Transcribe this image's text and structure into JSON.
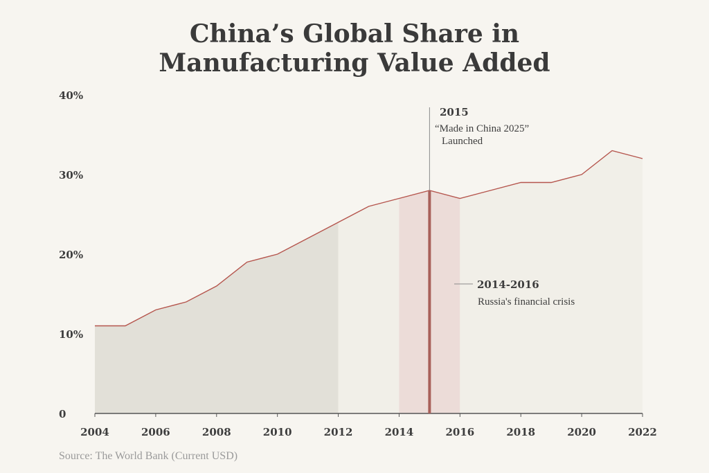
{
  "chart_data": {
    "type": "area",
    "title_lines": [
      "China’s Global Share in",
      "Manufacturing Value Added"
    ],
    "source": "Source: The World Bank (Current USD)",
    "x": [
      2004,
      2005,
      2006,
      2007,
      2008,
      2009,
      2010,
      2011,
      2012,
      2013,
      2014,
      2015,
      2016,
      2017,
      2018,
      2019,
      2020,
      2021,
      2022
    ],
    "series": [
      {
        "values": [
          11,
          11,
          13,
          14,
          16,
          19,
          20,
          22,
          24,
          26,
          27,
          28,
          27,
          28,
          29,
          29,
          30,
          33,
          32
        ]
      }
    ],
    "xlim": [
      2004,
      2022
    ],
    "ylim": [
      0,
      40
    ],
    "x_ticks": [
      2004,
      2006,
      2008,
      2010,
      2012,
      2014,
      2016,
      2018,
      2020,
      2022
    ],
    "y_ticks": [
      {
        "value": 0,
        "label": "0"
      },
      {
        "value": 10,
        "label": "10%"
      },
      {
        "value": 20,
        "label": "20%"
      },
      {
        "value": 30,
        "label": "30%"
      },
      {
        "value": 40,
        "label": "40%"
      }
    ],
    "shaded_regions": [
      {
        "from": 2004,
        "to": 2012,
        "color": "#e2e0d8"
      },
      {
        "from": 2012,
        "to": 2014,
        "color": "#f1efe8"
      },
      {
        "from": 2014,
        "to": 2016,
        "color": "#ecdcd8"
      },
      {
        "from": 2016,
        "to": 2022,
        "color": "#f1efe8"
      }
    ],
    "annotations": [
      {
        "x": 2015,
        "title": "2015",
        "lines": [
          "“Made in China 2025”",
          "Launched"
        ]
      },
      {
        "range": [
          2014,
          2016
        ],
        "title": "2014-2016",
        "lines": [
          "Russia's financial crisis"
        ]
      }
    ],
    "grid": false,
    "colors": {
      "line": "#b5554d",
      "marker_2015": "#a8605a",
      "axis": "#555555",
      "text": "#3d3d3d",
      "background": "#f7f5f0"
    }
  }
}
